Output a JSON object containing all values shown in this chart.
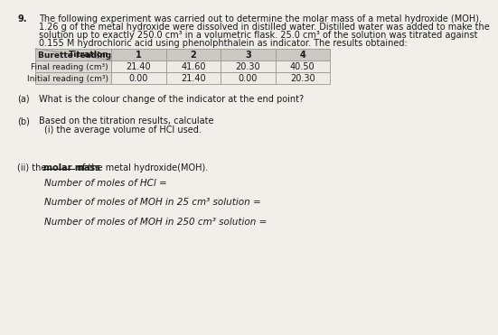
{
  "question_number": "9.",
  "intro_lines": [
    "The following experiment was carried out to determine the molar mass of a metal hydroxide (MOH).",
    "1.26 g of the metal hydroxide were dissolved in distilled water. Distilled water was added to make the",
    "solution up to exactly 250.0 cm³ in a volumetric flask. 25.0 cm³ of the solution was titrated against",
    "0.155 M hydrochloric acid using phenolphthalein as indicator. The results obtained:"
  ],
  "table_headers": [
    "1",
    "2",
    "3",
    "4"
  ],
  "table_row_label": "Burette reading",
  "table_diag_top": "Titration",
  "table_rows": [
    [
      "Final reading (cm³)",
      "21.40",
      "41.60",
      "20.30",
      "40.50"
    ],
    [
      "Initial reading (cm³)",
      "0.00",
      "21.40",
      "0.00",
      "20.30"
    ]
  ],
  "part_a_label": "(a)",
  "part_a_text": "What is the colour change of the indicator at the end point?",
  "part_b_label": "(b)",
  "part_b_text": "Based on the titration results, calculate",
  "part_b_i_text": "(i) the average volume of HCl used.",
  "part_b_ii_prefix": "(ii) the ",
  "part_b_ii_bold": "molar mass",
  "part_b_ii_suffix": " of the metal hydroxide(MOH).",
  "line1": "Number of moles of HCl =",
  "line2": "Number of moles of MOH in 25 cm³ solution =",
  "line3": "Number of moles of MOH in 250 cm³ solution =",
  "bg_color": "#f2efea",
  "text_color": "#1a1a1a",
  "table_header_bg": "#ccc8c3",
  "table_label_bg": "#dedad5",
  "table_data_bg": "#eeeae5",
  "table_border_color": "#999990"
}
